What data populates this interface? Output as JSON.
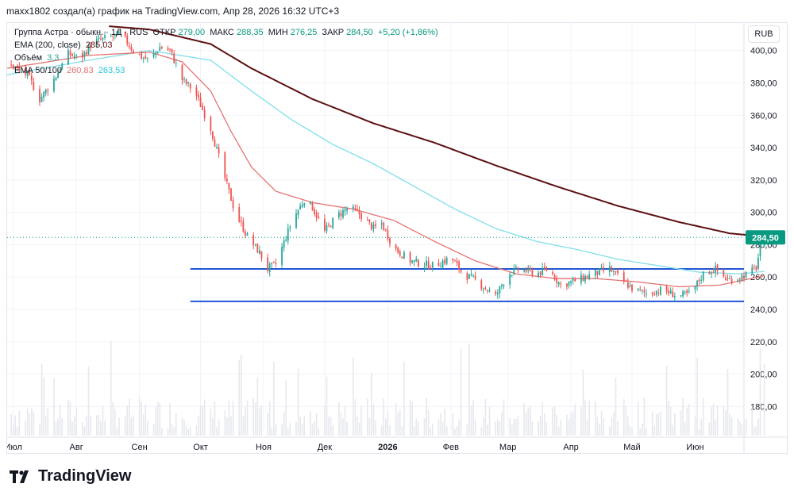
{
  "header": {
    "note": "maxx1802 создал(а) график на TradingView.com, Апр 28, 2026 16:32 UTC+3"
  },
  "currency_button": "RUB",
  "legend": {
    "symbol": "Группа Астра · обыкн. · 1Д · RUS",
    "o_label": "ОТКР",
    "o_value": "279,00",
    "h_label": "МАКС",
    "h_value": "288,35",
    "l_label": "МИН",
    "l_value": "276,25",
    "c_label": "ЗАКР",
    "c_value": "284,50",
    "change": "+5,20 (+1,86%)",
    "ema200_label": "EMA (200, close)",
    "ema200_value": "285,03",
    "volume_label": "Объём",
    "volume_value": "3,3",
    "ema50_100_label": "EMA 50/100",
    "ema50_value": "260,83",
    "ema100_value": "263,53"
  },
  "brand": {
    "name": "TradingView"
  },
  "colors": {
    "up": "#26a69a",
    "down": "#ef5350",
    "ema200": "#5d0f11",
    "ema50": "#e57373",
    "ema100": "#80deea",
    "level": "#2155d4",
    "price_label": "#089981"
  },
  "chart_data": {
    "type": "candlestick",
    "title": "Группа Астра · обыкн. · 1Д · RUS",
    "ylim": [
      165,
      417
    ],
    "y_ticks": [
      "400,00",
      "380,00",
      "360,00",
      "340,00",
      "320,00",
      "300,00",
      "280,00",
      "260,00",
      "240,00",
      "220,00",
      "200,00",
      "180,00"
    ],
    "y_tick_values": [
      400,
      380,
      360,
      340,
      320,
      300,
      280,
      260,
      240,
      220,
      200,
      180
    ],
    "x_ticks": [
      "Июл",
      "Авг",
      "Сен",
      "Окт",
      "Ноя",
      "Дек",
      "2026",
      "Фев",
      "Мар",
      "Апр",
      "Май",
      "Июн"
    ],
    "x_range": [
      "2025-06-28",
      "2026-06-25"
    ],
    "current_price": 284.5,
    "current_price_label": "284,50",
    "horizontal_levels": [
      265,
      245
    ],
    "price_path": [
      {
        "d": 0,
        "p": 392
      },
      {
        "d": 10,
        "p": 385
      },
      {
        "d": 16,
        "p": 370
      },
      {
        "d": 22,
        "p": 380
      },
      {
        "d": 30,
        "p": 398
      },
      {
        "d": 36,
        "p": 395
      },
      {
        "d": 42,
        "p": 405
      },
      {
        "d": 50,
        "p": 408
      },
      {
        "d": 56,
        "p": 410
      },
      {
        "d": 62,
        "p": 400
      },
      {
        "d": 66,
        "p": 396
      },
      {
        "d": 70,
        "p": 394
      },
      {
        "d": 75,
        "p": 402
      },
      {
        "d": 80,
        "p": 400
      },
      {
        "d": 86,
        "p": 382
      },
      {
        "d": 92,
        "p": 375
      },
      {
        "d": 100,
        "p": 352
      },
      {
        "d": 106,
        "p": 325
      },
      {
        "d": 112,
        "p": 300
      },
      {
        "d": 118,
        "p": 285
      },
      {
        "d": 124,
        "p": 275
      },
      {
        "d": 128,
        "p": 265
      },
      {
        "d": 132,
        "p": 268
      },
      {
        "d": 140,
        "p": 295
      },
      {
        "d": 146,
        "p": 308
      },
      {
        "d": 150,
        "p": 303
      },
      {
        "d": 156,
        "p": 288
      },
      {
        "d": 162,
        "p": 298
      },
      {
        "d": 168,
        "p": 303
      },
      {
        "d": 174,
        "p": 298
      },
      {
        "d": 180,
        "p": 290
      },
      {
        "d": 184,
        "p": 293
      },
      {
        "d": 190,
        "p": 278
      },
      {
        "d": 198,
        "p": 270
      },
      {
        "d": 204,
        "p": 268
      },
      {
        "d": 210,
        "p": 267
      },
      {
        "d": 218,
        "p": 272
      },
      {
        "d": 224,
        "p": 262
      },
      {
        "d": 230,
        "p": 258
      },
      {
        "d": 236,
        "p": 252
      },
      {
        "d": 240,
        "p": 248
      },
      {
        "d": 246,
        "p": 262
      },
      {
        "d": 252,
        "p": 265
      },
      {
        "d": 260,
        "p": 262
      },
      {
        "d": 266,
        "p": 265
      },
      {
        "d": 272,
        "p": 255
      },
      {
        "d": 280,
        "p": 258
      },
      {
        "d": 288,
        "p": 262
      },
      {
        "d": 296,
        "p": 265
      },
      {
        "d": 302,
        "p": 258
      },
      {
        "d": 308,
        "p": 252
      },
      {
        "d": 314,
        "p": 250
      },
      {
        "d": 322,
        "p": 252
      },
      {
        "d": 330,
        "p": 248
      },
      {
        "d": 336,
        "p": 250
      },
      {
        "d": 342,
        "p": 262
      },
      {
        "d": 348,
        "p": 265
      },
      {
        "d": 354,
        "p": 258
      },
      {
        "d": 360,
        "p": 260
      },
      {
        "d": 364,
        "p": 262
      },
      {
        "d": 368,
        "p": 266
      },
      {
        "d": 370,
        "p": 278
      },
      {
        "d": 372,
        "p": 284.5
      }
    ],
    "ema50_path": [
      {
        "d": 0,
        "p": 389
      },
      {
        "d": 40,
        "p": 397
      },
      {
        "d": 70,
        "p": 399
      },
      {
        "d": 86,
        "p": 393
      },
      {
        "d": 100,
        "p": 375
      },
      {
        "d": 110,
        "p": 350
      },
      {
        "d": 120,
        "p": 328
      },
      {
        "d": 132,
        "p": 313
      },
      {
        "d": 150,
        "p": 306
      },
      {
        "d": 170,
        "p": 302
      },
      {
        "d": 190,
        "p": 295
      },
      {
        "d": 210,
        "p": 282
      },
      {
        "d": 230,
        "p": 270
      },
      {
        "d": 250,
        "p": 262
      },
      {
        "d": 270,
        "p": 259
      },
      {
        "d": 290,
        "p": 259
      },
      {
        "d": 310,
        "p": 257
      },
      {
        "d": 330,
        "p": 254
      },
      {
        "d": 350,
        "p": 255
      },
      {
        "d": 372,
        "p": 260.8
      }
    ],
    "ema100_path": [
      {
        "d": 0,
        "p": 385
      },
      {
        "d": 40,
        "p": 394
      },
      {
        "d": 70,
        "p": 400
      },
      {
        "d": 100,
        "p": 394
      },
      {
        "d": 120,
        "p": 375
      },
      {
        "d": 140,
        "p": 357
      },
      {
        "d": 160,
        "p": 342
      },
      {
        "d": 180,
        "p": 330
      },
      {
        "d": 200,
        "p": 316
      },
      {
        "d": 220,
        "p": 302
      },
      {
        "d": 240,
        "p": 290
      },
      {
        "d": 260,
        "p": 282
      },
      {
        "d": 280,
        "p": 277
      },
      {
        "d": 300,
        "p": 271
      },
      {
        "d": 320,
        "p": 267
      },
      {
        "d": 340,
        "p": 263
      },
      {
        "d": 360,
        "p": 262
      },
      {
        "d": 372,
        "p": 263.5
      }
    ],
    "ema200_path": [
      {
        "d": 50,
        "p": 415
      },
      {
        "d": 70,
        "p": 413
      },
      {
        "d": 100,
        "p": 404
      },
      {
        "d": 120,
        "p": 389
      },
      {
        "d": 150,
        "p": 370
      },
      {
        "d": 180,
        "p": 355
      },
      {
        "d": 210,
        "p": 343
      },
      {
        "d": 240,
        "p": 329
      },
      {
        "d": 270,
        "p": 316
      },
      {
        "d": 300,
        "p": 304
      },
      {
        "d": 330,
        "p": 294
      },
      {
        "d": 355,
        "p": 287
      },
      {
        "d": 372,
        "p": 285
      }
    ]
  }
}
